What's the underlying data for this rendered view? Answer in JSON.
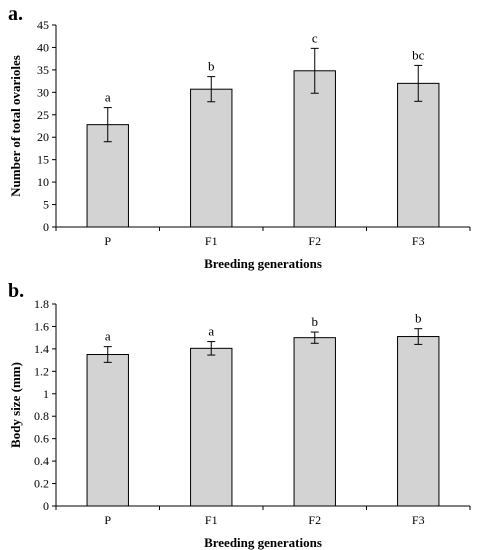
{
  "chart_data": [
    {
      "panel_label": "a.",
      "type": "bar",
      "categories": [
        "P",
        "F1",
        "F2",
        "F3"
      ],
      "values": [
        22.8,
        30.7,
        34.8,
        32.0
      ],
      "errors": [
        3.8,
        2.8,
        5.0,
        4.0
      ],
      "significance": [
        "a",
        "b",
        "c",
        "bc"
      ],
      "xlabel": "Breeding generations",
      "ylabel": "Number of total ovarioles",
      "ylim": [
        0,
        45
      ],
      "yticks": [
        "0",
        "5",
        "10",
        "15",
        "20",
        "25",
        "30",
        "35",
        "40",
        "45"
      ],
      "bar_color": "#d3d3d3",
      "grid": false
    },
    {
      "panel_label": "b.",
      "type": "bar",
      "categories": [
        "P",
        "F1",
        "F2",
        "F3"
      ],
      "values": [
        1.35,
        1.405,
        1.5,
        1.51
      ],
      "errors": [
        0.07,
        0.06,
        0.05,
        0.07
      ],
      "significance": [
        "a",
        "a",
        "b",
        "b"
      ],
      "xlabel": "Breeding generations",
      "ylabel": "Body size (mm)",
      "ylim": [
        0,
        1.8
      ],
      "yticks": [
        "0",
        "0.2",
        "0.4",
        "0.6",
        "0.8",
        "1",
        "1.2",
        "1.4",
        "1.6",
        "1.8"
      ],
      "bar_color": "#d3d3d3",
      "grid": false
    }
  ]
}
